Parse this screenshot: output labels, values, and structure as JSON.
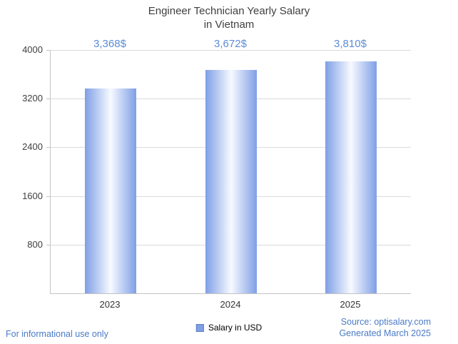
{
  "chart_data": {
    "type": "bar",
    "title": "Engineer Technician Yearly Salary in Vietnam",
    "title_lines": [
      "Engineer Technician Yearly Salary",
      "in Vietnam"
    ],
    "categories": [
      "2023",
      "2024",
      "2025"
    ],
    "series": [
      {
        "name": "Salary in USD",
        "values": [
          3368,
          3672,
          3810
        ]
      }
    ],
    "value_labels": [
      "3,368$",
      "3,672$",
      "3,810$"
    ],
    "ylim": [
      0,
      4000
    ],
    "yticks": [
      800,
      1600,
      2400,
      3200,
      4000
    ],
    "xlabel": "",
    "ylabel": "",
    "grid": "horizontal",
    "legend_position": "bottom"
  },
  "footer": {
    "disclaimer": "For informational use only",
    "source": "Source: optisalary.com",
    "generated": "Generated March 2025"
  },
  "colors": {
    "bar_fill_edge": "#7f9fe6",
    "bar_fill_center": "#f7faff",
    "value_label": "#5b8bd5",
    "footer_text": "#4a7ac6",
    "title_text": "#3f3f3f",
    "axis_text": "#404040",
    "axis_line": "#c4c4c4",
    "gridline": "#dadada",
    "legend_swatch_border": "#5f7fc0"
  }
}
